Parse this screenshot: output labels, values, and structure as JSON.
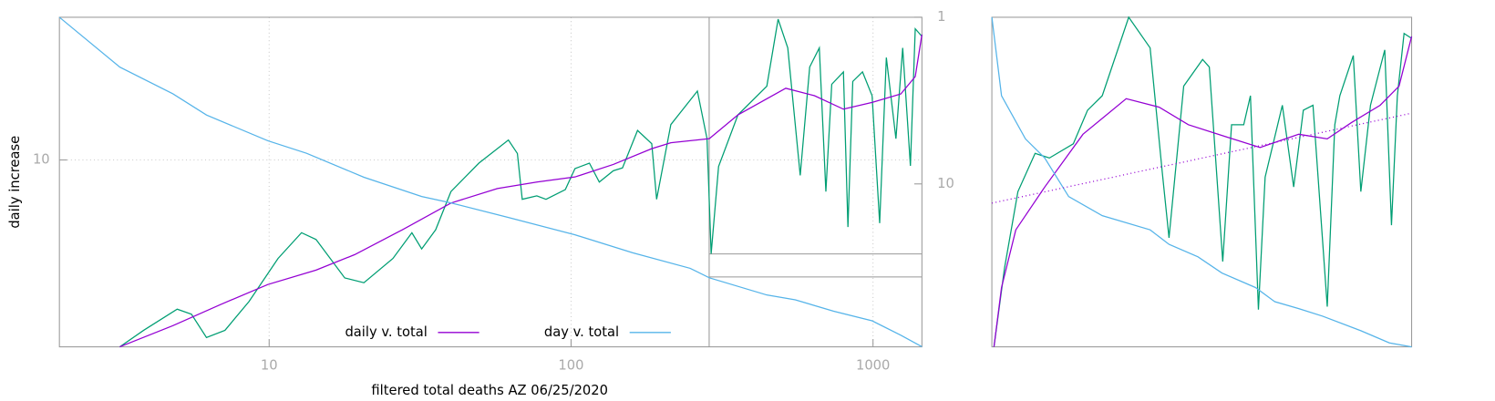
{
  "chart_data": [
    {
      "type": "line",
      "xlabel": "filtered total deaths AZ 06/25/2020",
      "ylabel": "daily increase",
      "xscale": "log",
      "yscale": "log",
      "y2scale": "log",
      "grid": true,
      "legend": "bottom",
      "xlim": [
        2.02,
        1452
      ],
      "xticks": [
        10,
        100,
        1000
      ],
      "ylim": [
        0.49,
        100
      ],
      "yticks": [
        10
      ],
      "y2lim": [
        95,
        1
      ],
      "y2ticks": [
        1,
        10
      ],
      "series": [
        {
          "color": "#009e73",
          "x": [
            3.2,
            3.84,
            4.96,
            5.53,
            6.2,
            7.14,
            8.58,
            10.7,
            12.8,
            14.3,
            17.8,
            20.6,
            25.7,
            29.7,
            32,
            35.6,
            40,
            49.5,
            62,
            66.4,
            68.9,
            77,
            82.6,
            95.7,
            103,
            115,
            124,
            138,
            148,
            166,
            185,
            192,
            214,
            262,
            282,
            291,
            308,
            357,
            445,
            485,
            522,
            574,
            617,
            664,
            698,
            730,
            798,
            826,
            857,
            923,
            993,
            1052,
            1107,
            1191,
            1254,
            1330,
            1380,
            1452
          ],
          "values": [
            0.49,
            0.64,
            0.9,
            0.83,
            0.57,
            0.64,
            1.02,
            2.04,
            3.09,
            2.77,
            1.49,
            1.38,
            2.04,
            3.09,
            2.38,
            3.24,
            6.0,
            9.5,
            13.8,
            11.1,
            5.3,
            5.6,
            5.3,
            6.2,
            8.7,
            9.5,
            7.0,
            8.4,
            8.8,
            16.1,
            13.0,
            5.3,
            17.7,
            30.4,
            14.1,
            2.2,
            9.0,
            20.7,
            32.9,
            97,
            61,
            7.8,
            44.8,
            61,
            6.0,
            33.9,
            41.4,
            3.39,
            35.5,
            41.4,
            28.2,
            3.61,
            52.2,
            14.1,
            61,
            9.1,
            83,
            73.5
          ]
        },
        {
          "name": "daily v. total",
          "color": "#9400d3",
          "x": [
            3.2,
            4.8,
            6.9,
            9.9,
            14.3,
            19.2,
            27.6,
            40,
            57,
            77,
            103,
            138,
            185,
            214,
            287,
            357,
            514,
            640,
            798,
            993,
            1236,
            1380,
            1452
          ],
          "values": [
            0.49,
            0.69,
            0.97,
            1.34,
            1.69,
            2.17,
            3.24,
            4.99,
            6.3,
            7.0,
            7.6,
            9.3,
            12.0,
            13.2,
            14.1,
            20.7,
            31.8,
            28.2,
            22.7,
            25.3,
            29.0,
            38.4,
            75.7
          ]
        },
        {
          "name": "day v. total",
          "color": "#56b4e9",
          "axis": "y2",
          "x": [
            2.02,
            3.2,
            4.8,
            6.2,
            9.9,
            13.3,
            20.6,
            32,
            40,
            62,
            103,
            160,
            248,
            287,
            445,
            553,
            741,
            993,
            1236,
            1452
          ],
          "values": [
            1,
            1.99,
            2.88,
            3.86,
            5.51,
            6.55,
            9.12,
            11.9,
            13.0,
            15.9,
            20.2,
            25.9,
            32.1,
            36.6,
            46.4,
            49.6,
            58.1,
            66.3,
            80.9,
            94.8
          ]
        }
      ]
    },
    {
      "type": "line",
      "xlim": [
        0,
        100
      ],
      "ylim": [
        0,
        100
      ],
      "series": [
        {
          "color": "#009e73",
          "x": [
            0.5,
            3,
            6.2,
            10.3,
            13.7,
            19.4,
            22.8,
            26.3,
            32.6,
            37.7,
            40.6,
            42.2,
            45.7,
            50.2,
            51.8,
            55,
            57.1,
            60,
            61.6,
            63.5,
            65.1,
            69.2,
            71.9,
            74.2,
            76.5,
            79.9,
            81.7,
            82.9,
            86.1,
            87.9,
            90.2,
            93.6,
            95.2,
            96.6,
            98.2,
            100
          ],
          "values": [
            0,
            23.8,
            47.1,
            58.7,
            57.3,
            61.6,
            71.8,
            76.2,
            100,
            90.7,
            52.9,
            33.1,
            79.1,
            87.2,
            84.9,
            25.9,
            67.4,
            67.4,
            76.2,
            11.3,
            51.5,
            73.3,
            48.5,
            71.8,
            73.3,
            12.2,
            67.4,
            76.2,
            88.4,
            47.1,
            73.3,
            90.1,
            36.9,
            76.2,
            95.1,
            93.6
          ]
        },
        {
          "color": "#9400d3",
          "x": [
            0.5,
            2.3,
            5.7,
            12.6,
            21.7,
            32,
            39.9,
            46.8,
            55.9,
            63.9,
            73.1,
            79.9,
            85.6,
            92.5,
            97,
            100
          ],
          "values": [
            0,
            18,
            35.5,
            48.5,
            64.5,
            75.3,
            72.7,
            67.4,
            63.7,
            60.5,
            64.5,
            63.1,
            68,
            73.3,
            79.1,
            94.2
          ]
        },
        {
          "color": "#56b4e9",
          "x": [
            0,
            2.3,
            8,
            12.6,
            18.3,
            26.3,
            37.7,
            42.2,
            49.1,
            54.8,
            62.8,
            67.4,
            73.1,
            78.8,
            87.9,
            94.7,
            100
          ],
          "values": [
            100,
            76.2,
            63.1,
            57.3,
            45.6,
            39.8,
            35.5,
            31.1,
            27.3,
            22.4,
            18,
            13.7,
            11.6,
            9.3,
            4.9,
            1.2,
            0
          ]
        },
        {
          "color": "#9400d3",
          "style": "dotted",
          "x": [
            0,
            100
          ],
          "values": [
            43.6,
            70.9
          ]
        }
      ]
    }
  ]
}
